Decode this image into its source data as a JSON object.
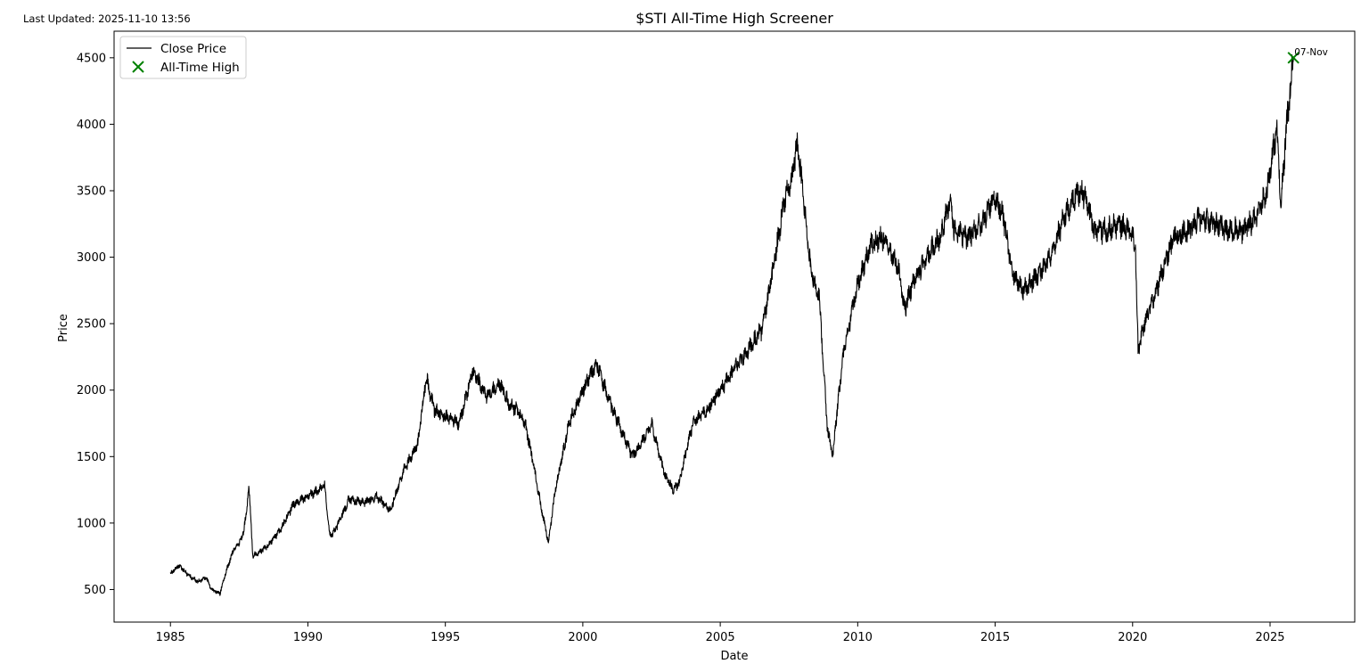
{
  "last_updated": "Last Updated: 2025-11-10 13:56",
  "chart_data": {
    "type": "line",
    "title": "$STI All-Time High Screener",
    "xlabel": "Date",
    "ylabel": "Price",
    "xlim": [
      1982.95,
      2028.08
    ],
    "ylim": [
      255,
      4700
    ],
    "x_ticks": [
      1985,
      1990,
      1995,
      2000,
      2005,
      2010,
      2015,
      2020,
      2025
    ],
    "x_tick_labels": [
      "1985",
      "1990",
      "1995",
      "2000",
      "2005",
      "2010",
      "2015",
      "2020",
      "2025"
    ],
    "y_ticks": [
      500,
      1000,
      1500,
      2000,
      2500,
      3000,
      3500,
      4000,
      4500
    ],
    "y_tick_labels": [
      "500",
      "1000",
      "1500",
      "2000",
      "2500",
      "3000",
      "3500",
      "4000",
      "4500"
    ],
    "grid": false,
    "legend_position": "top-left",
    "series": [
      {
        "name": "Close Price",
        "color": "#000000",
        "x": [
          1985.0,
          1985.3,
          1985.7,
          1986.0,
          1986.3,
          1986.5,
          1986.8,
          1987.0,
          1987.3,
          1987.6,
          1987.75,
          1987.85,
          1988.0,
          1988.5,
          1989.0,
          1989.5,
          1990.0,
          1990.5,
          1990.6,
          1990.8,
          1991.0,
          1991.5,
          1992.0,
          1992.5,
          1993.0,
          1993.5,
          1994.0,
          1994.3,
          1994.6,
          1995.0,
          1995.5,
          1996.0,
          1996.5,
          1997.0,
          1997.3,
          1997.6,
          1997.9,
          1998.2,
          1998.5,
          1998.75,
          1999.0,
          1999.5,
          2000.0,
          2000.5,
          2001.0,
          2001.5,
          2001.8,
          2002.0,
          2002.5,
          2003.0,
          2003.3,
          2003.5,
          2004.0,
          2004.5,
          2005.0,
          2005.5,
          2006.0,
          2006.5,
          2007.0,
          2007.3,
          2007.6,
          2007.8,
          2008.0,
          2008.3,
          2008.6,
          2008.9,
          2009.1,
          2009.2,
          2009.5,
          2010.0,
          2010.5,
          2011.0,
          2011.5,
          2011.7,
          2012.0,
          2012.5,
          2013.0,
          2013.4,
          2013.5,
          2014.0,
          2014.5,
          2015.0,
          2015.3,
          2015.6,
          2016.0,
          2016.5,
          2017.0,
          2017.5,
          2018.0,
          2018.3,
          2018.6,
          2019.0,
          2019.5,
          2019.9,
          2020.1,
          2020.2,
          2020.5,
          2020.8,
          2021.0,
          2021.5,
          2022.0,
          2022.5,
          2023.0,
          2023.5,
          2024.0,
          2024.5,
          2024.9,
          2025.1,
          2025.25,
          2025.4,
          2025.6,
          2025.85
        ],
        "y": [
          620,
          680,
          600,
          560,
          590,
          500,
          470,
          620,
          800,
          880,
          1050,
          1280,
          750,
          820,
          950,
          1150,
          1200,
          1260,
          1300,
          900,
          950,
          1180,
          1150,
          1200,
          1100,
          1400,
          1600,
          2100,
          1850,
          1800,
          1750,
          2150,
          1950,
          2050,
          1900,
          1850,
          1750,
          1450,
          1100,
          850,
          1250,
          1750,
          2000,
          2200,
          1900,
          1650,
          1500,
          1550,
          1750,
          1350,
          1250,
          1300,
          1750,
          1850,
          2000,
          2150,
          2300,
          2450,
          3000,
          3400,
          3600,
          3850,
          3500,
          2900,
          2700,
          1700,
          1500,
          1750,
          2300,
          2800,
          3100,
          3150,
          2900,
          2600,
          2800,
          3000,
          3150,
          3450,
          3200,
          3150,
          3250,
          3450,
          3300,
          2900,
          2750,
          2850,
          3000,
          3300,
          3500,
          3450,
          3200,
          3200,
          3250,
          3200,
          3100,
          2300,
          2550,
          2700,
          2850,
          3150,
          3200,
          3300,
          3250,
          3200,
          3200,
          3300,
          3500,
          3800,
          3950,
          3400,
          4000,
          4500
        ]
      },
      {
        "name": "All-Time High",
        "color": "#008000",
        "marker": "x",
        "x": [
          2025.85
        ],
        "y": [
          4500
        ]
      }
    ],
    "annotations": [
      {
        "text": "07-Nov",
        "x": 2025.85,
        "y": 4500
      }
    ]
  }
}
